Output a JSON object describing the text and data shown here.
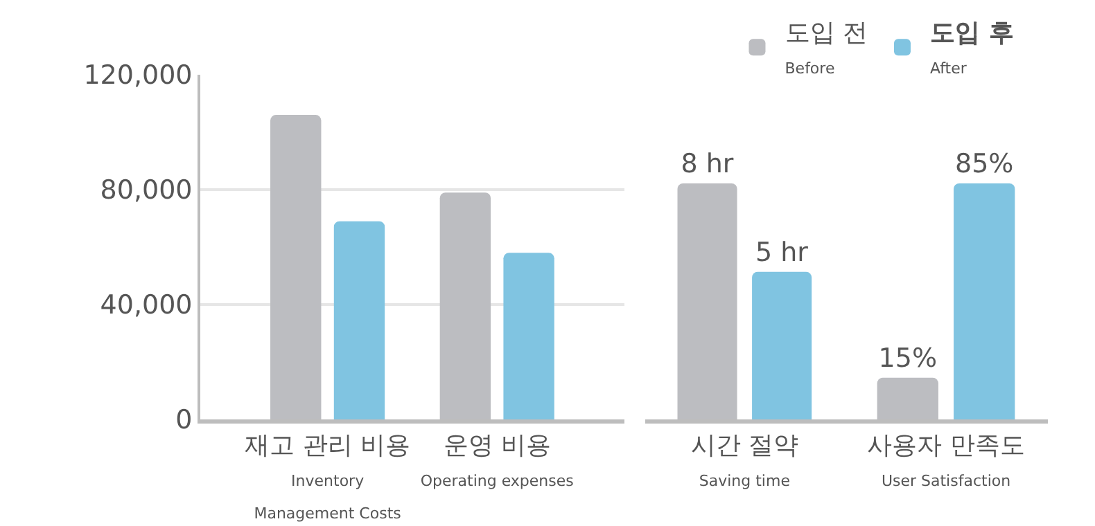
{
  "chart_data": [
    {
      "type": "bar",
      "categories": [
        "재고 관리 비용\nInventory\nManagement Costs",
        "운영 비용\nOperating expenses"
      ],
      "series": [
        {
          "color": "#bcbdc1",
          "values": [
            106000,
            79000
          ]
        },
        {
          "color": "#80c4e1",
          "values": [
            69000,
            58000
          ]
        }
      ],
      "ylim": [
        0,
        120000
      ],
      "yticks": [
        {
          "value": 0,
          "label": "0"
        },
        {
          "value": 40000,
          "label": "40,000"
        },
        {
          "value": 80000,
          "label": "80,000"
        },
        {
          "value": 120000,
          "label": "120,000"
        }
      ],
      "grid": "y",
      "legend": false
    },
    {
      "type": "bar",
      "categories": [
        "시간 절약\nSaving time"
      ],
      "series": [
        {
          "color": "#bcbdc1",
          "values": [
            8
          ],
          "value_labels": [
            "8 hr"
          ]
        },
        {
          "color": "#80c4e1",
          "values": [
            5
          ],
          "value_labels": [
            "5 hr"
          ]
        }
      ],
      "tick_labels": "x",
      "legend": false
    },
    {
      "type": "bar",
      "categories": [
        "사용자 만족도\nUser Satisfaction"
      ],
      "series": [
        {
          "name": "도입 전\nBefore",
          "color": "#bcbdc1",
          "values": [
            15
          ],
          "value_labels": [
            "15%"
          ]
        },
        {
          "name": "도입 후\nAfter",
          "color": "#80c4e1",
          "values": [
            85
          ],
          "value_labels": [
            "85%"
          ]
        }
      ],
      "tick_labels": "x",
      "legend": "top left"
    }
  ]
}
